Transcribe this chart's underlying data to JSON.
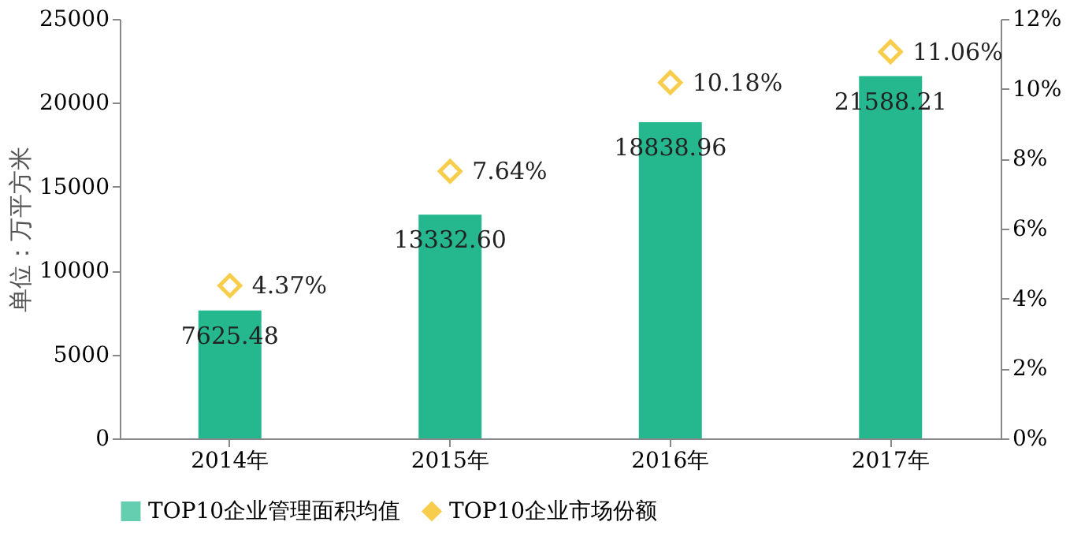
{
  "chart_data": {
    "type": "bar",
    "categories": [
      "2014年",
      "2015年",
      "2016年",
      "2017年"
    ],
    "ylabel": "单位：万平方米",
    "ylim": [
      0,
      25000
    ],
    "yticks": [
      0,
      5000,
      10000,
      15000,
      20000,
      25000
    ],
    "y2lim": [
      0,
      12
    ],
    "y2ticks": [
      {
        "value": 0,
        "label": "0%"
      },
      {
        "value": 2,
        "label": "2%"
      },
      {
        "value": 4,
        "label": "4%"
      },
      {
        "value": 6,
        "label": "6%"
      },
      {
        "value": 8,
        "label": "8%"
      },
      {
        "value": 10,
        "label": "10%"
      },
      {
        "value": 12,
        "label": "12%"
      }
    ],
    "series": [
      {
        "name": "TOP10企业管理面积均值",
        "color": "#25b88f",
        "values": [
          7625.48,
          13332.6,
          18838.96,
          21588.21
        ],
        "value_labels": [
          "7625.48",
          "13332.60",
          "18838.96",
          "21588.21"
        ]
      },
      {
        "name": "TOP10企业市场份额",
        "type": "scatter",
        "axis": "y2",
        "marker": "diamond",
        "color": "#f5b800",
        "values": [
          4.37,
          7.64,
          10.18,
          11.06
        ],
        "value_labels": [
          "4.37%",
          "7.64%",
          "10.18%",
          "11.06%"
        ]
      }
    ],
    "legend": "bottom",
    "grid": false
  }
}
